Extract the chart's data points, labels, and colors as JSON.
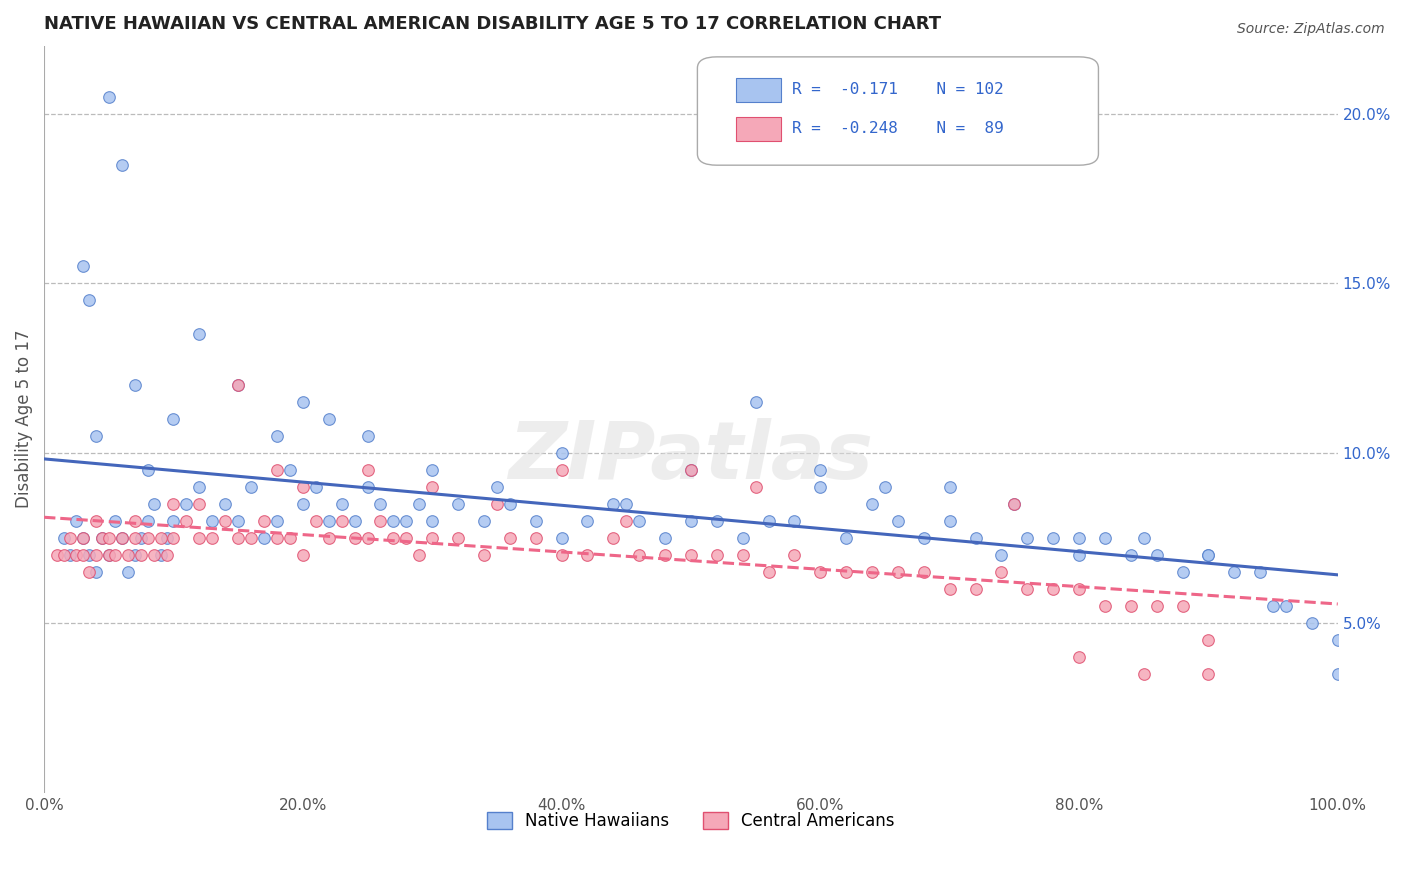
{
  "title": "NATIVE HAWAIIAN VS CENTRAL AMERICAN DISABILITY AGE 5 TO 17 CORRELATION CHART",
  "source": "Source: ZipAtlas.com",
  "ylabel": "Disability Age 5 to 17",
  "xlim": [
    0,
    100
  ],
  "ylim": [
    0,
    22
  ],
  "yticks_right": [
    5.0,
    10.0,
    15.0,
    20.0
  ],
  "ytick_labels_right": [
    "5.0%",
    "10.0%",
    "15.0%",
    "20.0%"
  ],
  "xticks": [
    0,
    20,
    40,
    60,
    80,
    100
  ],
  "xtick_labels": [
    "0.0%",
    "20.0%",
    "40.0%",
    "60.0%",
    "80.0%",
    "100.0%"
  ],
  "native_hawaiian_color": "#a8c4f0",
  "central_american_color": "#f5a8b8",
  "native_hawaiian_edge_color": "#5580cc",
  "central_american_edge_color": "#e05070",
  "native_hawaiian_line_color": "#4466bb",
  "central_american_line_color": "#ee6688",
  "R_native": -0.171,
  "N_native": 102,
  "R_central": -0.248,
  "N_central": 89,
  "watermark": "ZIPatlas",
  "background_color": "#ffffff",
  "grid_color": "#bbbbbb",
  "native_hawaiians_label": "Native Hawaiians",
  "central_americans_label": "Central Americans",
  "nh_x": [
    1.5,
    2.0,
    2.5,
    3.0,
    3.5,
    4.0,
    4.5,
    5.0,
    5.5,
    6.0,
    6.5,
    7.0,
    7.5,
    8.0,
    8.5,
    9.0,
    9.5,
    10.0,
    11.0,
    12.0,
    13.0,
    14.0,
    15.0,
    16.0,
    17.0,
    18.0,
    19.0,
    20.0,
    21.0,
    22.0,
    23.0,
    24.0,
    25.0,
    26.0,
    27.0,
    28.0,
    29.0,
    30.0,
    32.0,
    34.0,
    36.0,
    38.0,
    40.0,
    42.0,
    44.0,
    46.0,
    48.0,
    50.0,
    52.0,
    54.0,
    56.0,
    58.0,
    60.0,
    62.0,
    64.0,
    66.0,
    68.0,
    70.0,
    72.0,
    74.0,
    76.0,
    78.0,
    80.0,
    82.0,
    84.0,
    86.0,
    88.0,
    90.0,
    92.0,
    94.0,
    96.0,
    98.0,
    100.0,
    3.0,
    3.5,
    4.0,
    5.0,
    6.0,
    7.0,
    8.0,
    10.0,
    12.0,
    15.0,
    18.0,
    20.0,
    22.0,
    25.0,
    30.0,
    35.0,
    40.0,
    45.0,
    50.0,
    55.0,
    60.0,
    65.0,
    70.0,
    75.0,
    80.0,
    85.0,
    90.0,
    95.0,
    100.0
  ],
  "nh_y": [
    7.5,
    7.0,
    8.0,
    7.5,
    7.0,
    6.5,
    7.5,
    7.0,
    8.0,
    7.5,
    6.5,
    7.0,
    7.5,
    8.0,
    8.5,
    7.0,
    7.5,
    8.0,
    8.5,
    9.0,
    8.0,
    8.5,
    8.0,
    9.0,
    7.5,
    8.0,
    9.5,
    8.5,
    9.0,
    8.0,
    8.5,
    8.0,
    9.0,
    8.5,
    8.0,
    8.0,
    8.5,
    8.0,
    8.5,
    8.0,
    8.5,
    8.0,
    7.5,
    8.0,
    8.5,
    8.0,
    7.5,
    8.0,
    8.0,
    7.5,
    8.0,
    8.0,
    9.0,
    7.5,
    8.5,
    8.0,
    7.5,
    8.0,
    7.5,
    7.0,
    7.5,
    7.5,
    7.0,
    7.5,
    7.0,
    7.0,
    6.5,
    7.0,
    6.5,
    6.5,
    5.5,
    5.0,
    4.5,
    15.5,
    14.5,
    10.5,
    20.5,
    18.5,
    12.0,
    9.5,
    11.0,
    13.5,
    12.0,
    10.5,
    11.5,
    11.0,
    10.5,
    9.5,
    9.0,
    10.0,
    8.5,
    9.5,
    11.5,
    9.5,
    9.0,
    9.0,
    8.5,
    7.5,
    7.5,
    7.0,
    5.5,
    3.5
  ],
  "ca_x": [
    1.0,
    1.5,
    2.0,
    2.5,
    3.0,
    3.5,
    4.0,
    4.5,
    5.0,
    5.5,
    6.0,
    6.5,
    7.0,
    7.5,
    8.0,
    8.5,
    9.0,
    9.5,
    10.0,
    11.0,
    12.0,
    13.0,
    14.0,
    15.0,
    16.0,
    17.0,
    18.0,
    19.0,
    20.0,
    21.0,
    22.0,
    23.0,
    24.0,
    25.0,
    26.0,
    27.0,
    28.0,
    29.0,
    30.0,
    32.0,
    34.0,
    36.0,
    38.0,
    40.0,
    42.0,
    44.0,
    46.0,
    48.0,
    50.0,
    52.0,
    54.0,
    56.0,
    58.0,
    60.0,
    62.0,
    64.0,
    66.0,
    68.0,
    70.0,
    72.0,
    74.0,
    76.0,
    78.0,
    80.0,
    82.0,
    84.0,
    86.0,
    88.0,
    90.0,
    3.0,
    4.0,
    5.0,
    7.0,
    10.0,
    12.0,
    15.0,
    18.0,
    20.0,
    25.0,
    30.0,
    35.0,
    40.0,
    45.0,
    50.0,
    55.0,
    75.0,
    80.0,
    85.0,
    90.0
  ],
  "ca_y": [
    7.0,
    7.0,
    7.5,
    7.0,
    7.0,
    6.5,
    7.0,
    7.5,
    7.0,
    7.0,
    7.5,
    7.0,
    7.5,
    7.0,
    7.5,
    7.0,
    7.5,
    7.0,
    7.5,
    8.0,
    7.5,
    7.5,
    8.0,
    7.5,
    7.5,
    8.0,
    7.5,
    7.5,
    7.0,
    8.0,
    7.5,
    8.0,
    7.5,
    7.5,
    8.0,
    7.5,
    7.5,
    7.0,
    7.5,
    7.5,
    7.0,
    7.5,
    7.5,
    7.0,
    7.0,
    7.5,
    7.0,
    7.0,
    7.0,
    7.0,
    7.0,
    6.5,
    7.0,
    6.5,
    6.5,
    6.5,
    6.5,
    6.5,
    6.0,
    6.0,
    6.5,
    6.0,
    6.0,
    6.0,
    5.5,
    5.5,
    5.5,
    5.5,
    4.5,
    7.5,
    8.0,
    7.5,
    8.0,
    8.5,
    8.5,
    12.0,
    9.5,
    9.0,
    9.5,
    9.0,
    8.5,
    9.5,
    8.0,
    9.5,
    9.0,
    8.5,
    4.0,
    3.5,
    3.5
  ]
}
